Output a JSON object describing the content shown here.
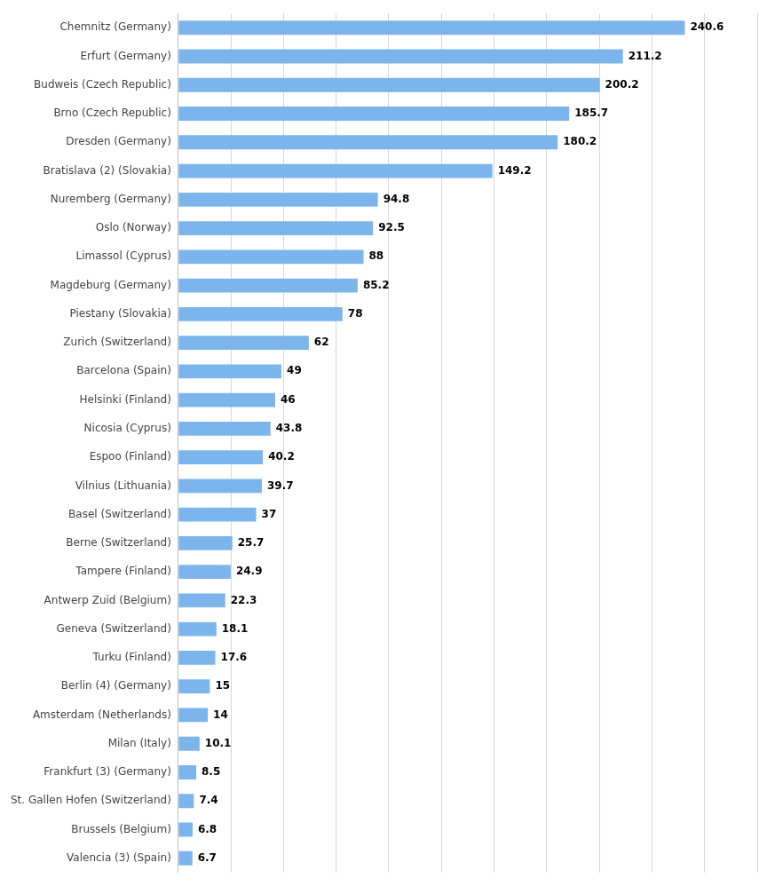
{
  "chart_data": {
    "type": "bar",
    "orientation": "horizontal",
    "categories": [
      "Chemnitz (Germany)",
      "Erfurt (Germany)",
      "Budweis (Czech Republic)",
      "Brno (Czech Republic)",
      "Dresden (Germany)",
      "Bratislava (2) (Slovakia)",
      "Nuremberg (Germany)",
      "Oslo (Norway)",
      "Limassol (Cyprus)",
      "Magdeburg (Germany)",
      "Piestany (Slovakia)",
      "Zurich (Switzerland)",
      "Barcelona (Spain)",
      "Helsinki (Finland)",
      "Nicosia (Cyprus)",
      "Espoo (Finland)",
      "Vilnius (Lithuania)",
      "Basel (Switzerland)",
      "Berne (Switzerland)",
      "Tampere (Finland)",
      "Antwerp Zuid (Belgium)",
      "Geneva (Switzerland)",
      "Turku (Finland)",
      "Berlin (4) (Germany)",
      "Amsterdam (Netherlands)",
      "Milan (Italy)",
      "Frankfurt (3) (Germany)",
      "St. Gallen Hofen (Switzerland)",
      "Brussels (Belgium)",
      "Valencia (3) (Spain)"
    ],
    "values": [
      240.6,
      211.2,
      200.2,
      185.7,
      180.2,
      149.2,
      94.8,
      92.5,
      88,
      85.2,
      78,
      62,
      49,
      46,
      43.8,
      40.2,
      39.7,
      37,
      25.7,
      24.9,
      22.3,
      18.1,
      17.6,
      15,
      14,
      10.1,
      8.5,
      7.4,
      6.8,
      6.7
    ],
    "color": "#7cb5ec",
    "xlim": [
      0,
      275
    ],
    "xticks": [
      0,
      25,
      50,
      75,
      100,
      125,
      150,
      175,
      200,
      225,
      250,
      275
    ],
    "grid": true,
    "data_labels": true,
    "tick_labels": "y"
  }
}
